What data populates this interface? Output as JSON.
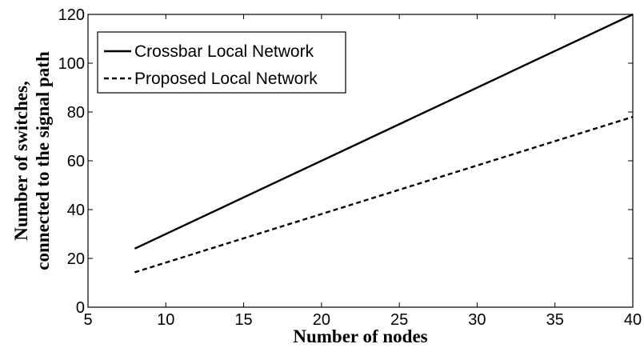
{
  "chart_data": {
    "type": "line",
    "title": "",
    "xlabel": "Number of nodes",
    "ylabel_lines": [
      "Number of switches,",
      "connected to the signal path"
    ],
    "xlim": [
      5,
      40
    ],
    "ylim": [
      0,
      120
    ],
    "xticks": [
      5,
      10,
      15,
      20,
      25,
      30,
      35,
      40
    ],
    "yticks": [
      0,
      20,
      40,
      60,
      80,
      100,
      120
    ],
    "grid": false,
    "legend_position": "top-left",
    "series": [
      {
        "name": "Crossbar Local Network",
        "style": "solid",
        "color": "#000000",
        "x": [
          8,
          40
        ],
        "y": [
          24,
          120
        ]
      },
      {
        "name": "Proposed Local Network",
        "style": "dashed",
        "color": "#000000",
        "x": [
          8,
          40
        ],
        "y": [
          14.3,
          78
        ]
      }
    ]
  }
}
